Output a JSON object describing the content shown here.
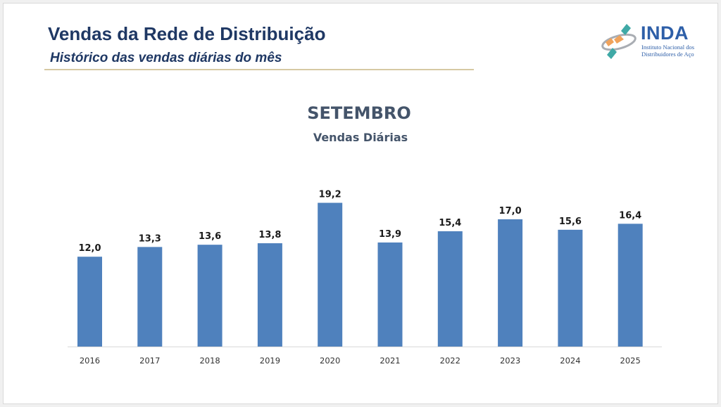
{
  "header": {
    "title": "Vendas da Rede de Distribuição",
    "subtitle": "Histórico das vendas diárias do mês"
  },
  "logo": {
    "icon": "inda-logo-icon",
    "name": "INDA",
    "line1": "Instituto Nacional dos",
    "line2": "Distribuidores de Aço"
  },
  "colors": {
    "title": "#1f3864",
    "bar": "#4f81bd",
    "rule": "#d6c9a3",
    "chart_title": "#44546a"
  },
  "chart_data": {
    "type": "bar",
    "title": "SETEMBRO",
    "subtitle": "Vendas Diárias",
    "xlabel": "",
    "ylabel": "",
    "categories": [
      "2016",
      "2017",
      "2018",
      "2019",
      "2020",
      "2021",
      "2022",
      "2023",
      "2024",
      "2025"
    ],
    "values": [
      12.0,
      13.3,
      13.6,
      13.8,
      19.2,
      13.9,
      15.4,
      17.0,
      15.6,
      16.4
    ],
    "data_labels": [
      "12,0",
      "13,3",
      "13,6",
      "13,8",
      "19,2",
      "13,9",
      "15,4",
      "17,0",
      "15,6",
      "16,4"
    ],
    "ylim": [
      0,
      20
    ],
    "grid": false,
    "legend": "none",
    "y_axis_visible": false
  }
}
